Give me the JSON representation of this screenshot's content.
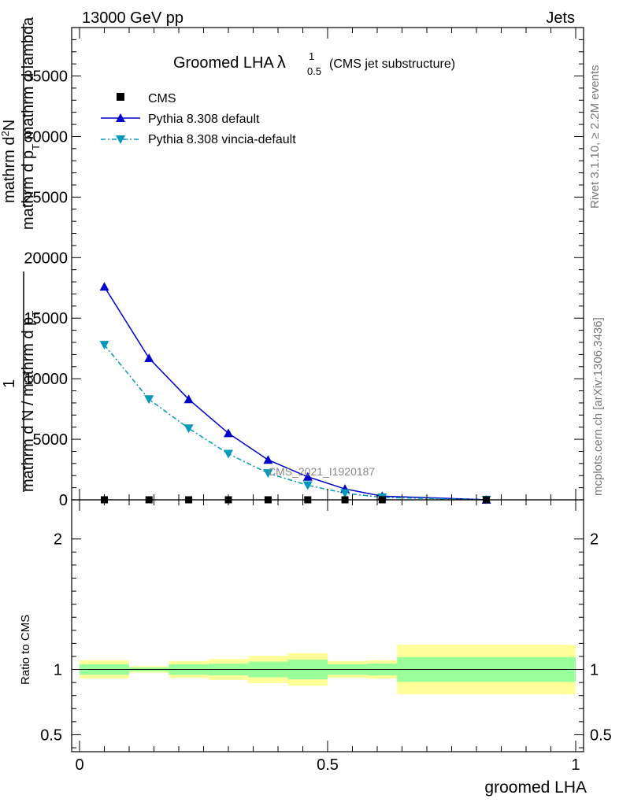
{
  "header": {
    "left": "13000 GeV pp",
    "right": "Jets"
  },
  "title": {
    "main": "Groomed LHA",
    "lambda": "λ",
    "sup": "1",
    "sub": "0.5",
    "suffix": "(CMS jet substructure)"
  },
  "watermark": "CMS_2021_I1920187",
  "side_labels": {
    "rivet": "Rivet 3.1.10, ≥ 2.2M events",
    "mcplots": "mcplots.cern.ch [arXiv:1306.3436]"
  },
  "ylabel_main": {
    "line1": "mathrm d",
    "sup1": "2",
    "line1b": "N",
    "frac_top": "mathrm d p",
    "frac_top_sub": "T",
    "frac_top2": " mathrm d lambda",
    "one": "1",
    "frac_bot": "mathrm d N / mathrm d p",
    "frac_bot_sub": "T"
  },
  "ylabel_ratio": "Ratio to CMS",
  "xlabel": "groomed LHA",
  "legend": [
    {
      "label": "CMS",
      "marker": "square",
      "color": "#000000"
    },
    {
      "label": "Pythia 8.308 default",
      "marker": "triangle-up",
      "color": "#0000cc"
    },
    {
      "label": "Pythia 8.308 vincia-default",
      "marker": "triangle-down",
      "color": "#0099bb"
    }
  ],
  "chart_data": {
    "type": "line",
    "xlim": [
      0,
      1
    ],
    "ylim_main": [
      0,
      39000
    ],
    "ylim_ratio": [
      0.37,
      2.3
    ],
    "x_ticks": [
      "0",
      "0.5",
      "1"
    ],
    "y_ticks_main": [
      "0",
      "5000",
      "10000",
      "15000",
      "20000",
      "25000",
      "30000",
      "35000"
    ],
    "y_ticks_ratio": [
      "0.5",
      "1",
      "2"
    ],
    "bin_edges": [
      0,
      0.1,
      0.18,
      0.26,
      0.34,
      0.42,
      0.5,
      0.58,
      0.64,
      1.0
    ],
    "x_points": [
      0.05,
      0.14,
      0.22,
      0.3,
      0.38,
      0.46,
      0.535,
      0.61,
      0.82
    ],
    "series": [
      {
        "name": "CMS",
        "values": [
          2,
          2,
          2,
          2,
          2,
          2,
          2,
          2,
          2
        ]
      },
      {
        "name": "Pythia 8.308 default",
        "values": [
          17600,
          11700,
          8300,
          5500,
          3300,
          1900,
          900,
          300,
          10
        ]
      },
      {
        "name": "Pythia 8.308 vincia-default",
        "values": [
          12800,
          8300,
          5900,
          3800,
          2200,
          1200,
          550,
          200,
          8
        ]
      }
    ],
    "ratio_bands": {
      "inner": [
        [
          0.96,
          1.04
        ],
        [
          0.985,
          1.015
        ],
        [
          0.96,
          1.04
        ],
        [
          0.955,
          1.045
        ],
        [
          0.94,
          1.06
        ],
        [
          0.925,
          1.075
        ],
        [
          0.96,
          1.04
        ],
        [
          0.955,
          1.045
        ],
        [
          0.905,
          1.095
        ]
      ],
      "outer": [
        [
          0.93,
          1.07
        ],
        [
          0.975,
          1.025
        ],
        [
          0.935,
          1.065
        ],
        [
          0.92,
          1.08
        ],
        [
          0.895,
          1.105
        ],
        [
          0.875,
          1.125
        ],
        [
          0.935,
          1.065
        ],
        [
          0.93,
          1.07
        ],
        [
          0.81,
          1.19
        ]
      ]
    },
    "colors": {
      "inner_band": "#99ff99",
      "outer_band": "#ffff99"
    }
  }
}
